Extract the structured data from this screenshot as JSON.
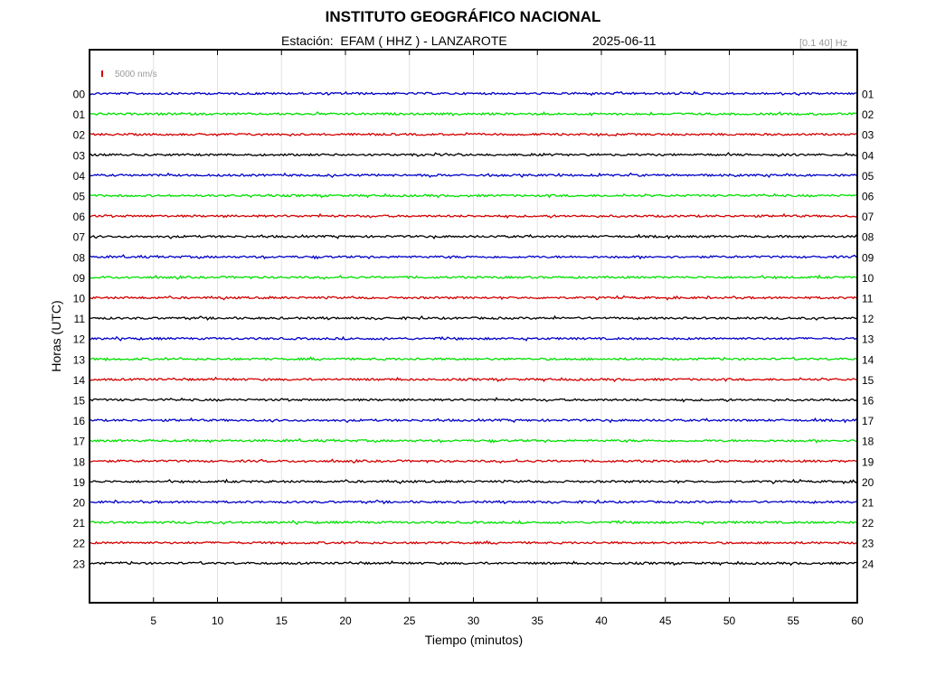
{
  "header": {
    "title": "INSTITUTO GEOGRÁFICO NACIONAL",
    "station_prefix": "Estación:",
    "station": "EFAM ( HHZ ) - LANZAROTE",
    "date": "2025-06-11",
    "filter": "[0.1 40] Hz"
  },
  "chart_data": {
    "type": "line",
    "title": "INSTITUTO GEOGRÁFICO NACIONAL",
    "xlabel": "Tiempo (minutos)",
    "ylabel": "Horas (UTC)",
    "xlim": [
      0,
      60
    ],
    "x_ticks": [
      "5",
      "10",
      "15",
      "20",
      "25",
      "30",
      "35",
      "40",
      "45",
      "50",
      "55",
      "60"
    ],
    "y_ticks_left": [
      "00",
      "01",
      "02",
      "03",
      "04",
      "05",
      "06",
      "07",
      "08",
      "09",
      "10",
      "11",
      "12",
      "13",
      "14",
      "15",
      "16",
      "17",
      "18",
      "19",
      "20",
      "21",
      "22",
      "23"
    ],
    "y_ticks_right": [
      "01",
      "02",
      "03",
      "04",
      "05",
      "06",
      "07",
      "08",
      "09",
      "10",
      "11",
      "12",
      "13",
      "14",
      "15",
      "16",
      "17",
      "18",
      "19",
      "20",
      "21",
      "22",
      "23",
      "24"
    ],
    "scale_bar": {
      "label": "5000 nm/s",
      "color": "#d40000"
    },
    "trace_colors": [
      "#0000c8",
      "#00e000",
      "#d40000",
      "#000000"
    ],
    "grid": true,
    "series": [
      {
        "hour": "00",
        "color": "#0000c8"
      },
      {
        "hour": "01",
        "color": "#00e000"
      },
      {
        "hour": "02",
        "color": "#d40000"
      },
      {
        "hour": "03",
        "color": "#000000"
      },
      {
        "hour": "04",
        "color": "#0000c8"
      },
      {
        "hour": "05",
        "color": "#00e000"
      },
      {
        "hour": "06",
        "color": "#d40000"
      },
      {
        "hour": "07",
        "color": "#000000"
      },
      {
        "hour": "08",
        "color": "#0000c8"
      },
      {
        "hour": "09",
        "color": "#00e000"
      },
      {
        "hour": "10",
        "color": "#d40000"
      },
      {
        "hour": "11",
        "color": "#000000"
      },
      {
        "hour": "12",
        "color": "#0000c8"
      },
      {
        "hour": "13",
        "color": "#00e000"
      },
      {
        "hour": "14",
        "color": "#d40000"
      },
      {
        "hour": "15",
        "color": "#000000"
      },
      {
        "hour": "16",
        "color": "#0000c8"
      },
      {
        "hour": "17",
        "color": "#00e000"
      },
      {
        "hour": "18",
        "color": "#d40000"
      },
      {
        "hour": "19",
        "color": "#000000"
      },
      {
        "hour": "20",
        "color": "#0000c8"
      },
      {
        "hour": "21",
        "color": "#00e000"
      },
      {
        "hour": "22",
        "color": "#d40000"
      },
      {
        "hour": "23",
        "color": "#000000"
      }
    ]
  }
}
